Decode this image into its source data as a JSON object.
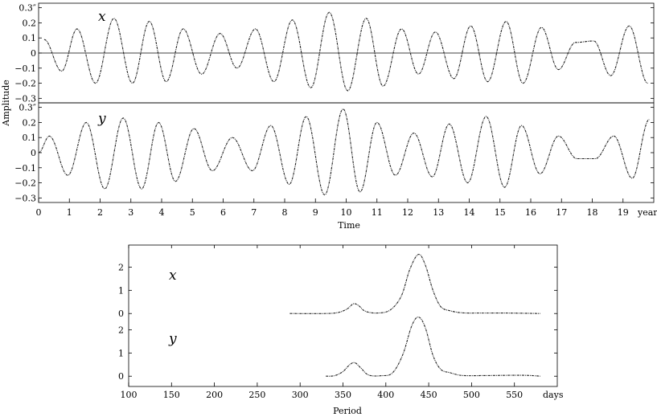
{
  "chart_data": [
    {
      "type": "line",
      "xlabel": "Time",
      "x_unit": "year",
      "ylabel": "Amplitude",
      "xlim": [
        0,
        20
      ],
      "x_ticks": [
        0,
        1,
        2,
        3,
        4,
        5,
        6,
        7,
        8,
        9,
        10,
        11,
        12,
        13,
        14,
        15,
        16,
        17,
        18,
        19
      ],
      "panels": [
        {
          "name": "x",
          "ylim": [
            -0.33,
            0.33
          ],
          "y_ticks": [
            "0.3″",
            "0.2",
            "0.1",
            "0",
            "−0.1",
            "−0.2",
            "−0.3"
          ],
          "y_tick_values": [
            0.3,
            0.2,
            0.1,
            0,
            -0.1,
            -0.2,
            -0.3
          ],
          "zero_line": true,
          "series_params": {
            "a1": 0.17,
            "f1": 0.835,
            "p1": 0.3,
            "a2": 0.05,
            "f2": 0.995,
            "p2": 1.2,
            "offset": 0.0
          },
          "extrema_points": [
            {
              "x": 0.18,
              "y": 0.09
            },
            {
              "x": 0.75,
              "y": -0.12
            },
            {
              "x": 1.25,
              "y": 0.16
            },
            {
              "x": 1.85,
              "y": -0.2
            },
            {
              "x": 2.45,
              "y": 0.23
            },
            {
              "x": 3.05,
              "y": -0.2
            },
            {
              "x": 3.6,
              "y": 0.21
            },
            {
              "x": 4.15,
              "y": -0.19
            },
            {
              "x": 4.7,
              "y": 0.16
            },
            {
              "x": 5.3,
              "y": -0.14
            },
            {
              "x": 5.9,
              "y": 0.13
            },
            {
              "x": 6.45,
              "y": -0.1
            },
            {
              "x": 7.05,
              "y": 0.16
            },
            {
              "x": 7.65,
              "y": -0.19
            },
            {
              "x": 8.25,
              "y": 0.22
            },
            {
              "x": 8.85,
              "y": -0.23
            },
            {
              "x": 9.45,
              "y": 0.27
            },
            {
              "x": 10.05,
              "y": -0.25
            },
            {
              "x": 10.65,
              "y": 0.23
            },
            {
              "x": 11.2,
              "y": -0.22
            },
            {
              "x": 11.8,
              "y": 0.16
            },
            {
              "x": 12.35,
              "y": -0.14
            },
            {
              "x": 12.9,
              "y": 0.14
            },
            {
              "x": 13.5,
              "y": -0.17
            },
            {
              "x": 14.05,
              "y": 0.18
            },
            {
              "x": 14.6,
              "y": -0.19
            },
            {
              "x": 15.2,
              "y": 0.21
            },
            {
              "x": 15.75,
              "y": -0.2
            },
            {
              "x": 16.35,
              "y": 0.17
            },
            {
              "x": 16.9,
              "y": -0.11
            },
            {
              "x": 17.45,
              "y": 0.07
            },
            {
              "x": 18.05,
              "y": 0.08
            },
            {
              "x": 18.6,
              "y": -0.15
            },
            {
              "x": 19.2,
              "y": 0.18
            },
            {
              "x": 19.8,
              "y": -0.2
            }
          ]
        },
        {
          "name": "y",
          "ylim": [
            -0.33,
            0.33
          ],
          "y_ticks": [
            "0.3″",
            "0.2",
            "0.1",
            "0",
            "−0.1",
            "−0.2",
            "−0.3"
          ],
          "y_tick_values": [
            0.3,
            0.2,
            0.1,
            0,
            -0.1,
            -0.2,
            -0.3
          ],
          "zero_line": false,
          "extrema_points": [
            {
              "x": 0.0,
              "y": 0.0
            },
            {
              "x": 0.35,
              "y": 0.11
            },
            {
              "x": 0.95,
              "y": -0.15
            },
            {
              "x": 1.55,
              "y": 0.2
            },
            {
              "x": 2.15,
              "y": -0.24
            },
            {
              "x": 2.75,
              "y": 0.23
            },
            {
              "x": 3.35,
              "y": -0.24
            },
            {
              "x": 3.9,
              "y": 0.2
            },
            {
              "x": 4.45,
              "y": -0.19
            },
            {
              "x": 5.05,
              "y": 0.16
            },
            {
              "x": 5.65,
              "y": -0.12
            },
            {
              "x": 6.3,
              "y": 0.1
            },
            {
              "x": 6.95,
              "y": -0.12
            },
            {
              "x": 7.55,
              "y": 0.18
            },
            {
              "x": 8.15,
              "y": -0.21
            },
            {
              "x": 8.7,
              "y": 0.24
            },
            {
              "x": 9.3,
              "y": -0.28
            },
            {
              "x": 9.9,
              "y": 0.29
            },
            {
              "x": 10.45,
              "y": -0.26
            },
            {
              "x": 11.0,
              "y": 0.2
            },
            {
              "x": 11.6,
              "y": -0.15
            },
            {
              "x": 12.2,
              "y": 0.13
            },
            {
              "x": 12.8,
              "y": -0.16
            },
            {
              "x": 13.35,
              "y": 0.19
            },
            {
              "x": 13.95,
              "y": -0.2
            },
            {
              "x": 14.55,
              "y": 0.24
            },
            {
              "x": 15.15,
              "y": -0.23
            },
            {
              "x": 15.7,
              "y": 0.18
            },
            {
              "x": 16.3,
              "y": -0.14
            },
            {
              "x": 16.9,
              "y": 0.11
            },
            {
              "x": 17.5,
              "y": -0.04
            },
            {
              "x": 18.1,
              "y": -0.04
            },
            {
              "x": 18.7,
              "y": 0.11
            },
            {
              "x": 19.3,
              "y": -0.17
            },
            {
              "x": 19.85,
              "y": 0.22
            }
          ]
        }
      ]
    },
    {
      "type": "line",
      "xlabel": "Period",
      "x_unit": "days",
      "xlim": [
        100,
        600
      ],
      "x_ticks": [
        100,
        150,
        200,
        250,
        300,
        350,
        400,
        450,
        500,
        550
      ],
      "panels": [
        {
          "name": "x",
          "ylim": [
            -0.2,
            2.5
          ],
          "y_ticks": [
            2,
            1,
            0
          ],
          "points": [
            {
              "x": 288,
              "y": 0.0
            },
            {
              "x": 330,
              "y": 0.0
            },
            {
              "x": 345,
              "y": 0.05
            },
            {
              "x": 355,
              "y": 0.2
            },
            {
              "x": 362,
              "y": 0.42
            },
            {
              "x": 368,
              "y": 0.35
            },
            {
              "x": 376,
              "y": 0.1
            },
            {
              "x": 390,
              "y": 0.02
            },
            {
              "x": 405,
              "y": 0.15
            },
            {
              "x": 418,
              "y": 0.75
            },
            {
              "x": 428,
              "y": 1.9
            },
            {
              "x": 438,
              "y": 2.55
            },
            {
              "x": 446,
              "y": 2.1
            },
            {
              "x": 455,
              "y": 1.0
            },
            {
              "x": 464,
              "y": 0.3
            },
            {
              "x": 475,
              "y": 0.12
            },
            {
              "x": 490,
              "y": 0.03
            },
            {
              "x": 510,
              "y": 0.02
            },
            {
              "x": 540,
              "y": 0.02
            },
            {
              "x": 580,
              "y": 0.0
            }
          ]
        },
        {
          "name": "y",
          "ylim": [
            -0.2,
            2.5
          ],
          "y_ticks": [
            2,
            1,
            0
          ],
          "points": [
            {
              "x": 330,
              "y": 0.0
            },
            {
              "x": 340,
              "y": 0.02
            },
            {
              "x": 350,
              "y": 0.2
            },
            {
              "x": 358,
              "y": 0.5
            },
            {
              "x": 364,
              "y": 0.58
            },
            {
              "x": 371,
              "y": 0.35
            },
            {
              "x": 380,
              "y": 0.05
            },
            {
              "x": 395,
              "y": 0.02
            },
            {
              "x": 408,
              "y": 0.15
            },
            {
              "x": 420,
              "y": 0.95
            },
            {
              "x": 430,
              "y": 2.15
            },
            {
              "x": 438,
              "y": 2.55
            },
            {
              "x": 446,
              "y": 2.1
            },
            {
              "x": 455,
              "y": 0.9
            },
            {
              "x": 464,
              "y": 0.3
            },
            {
              "x": 475,
              "y": 0.15
            },
            {
              "x": 490,
              "y": 0.03
            },
            {
              "x": 520,
              "y": 0.03
            },
            {
              "x": 560,
              "y": 0.04
            },
            {
              "x": 580,
              "y": 0.0
            }
          ]
        }
      ]
    }
  ]
}
